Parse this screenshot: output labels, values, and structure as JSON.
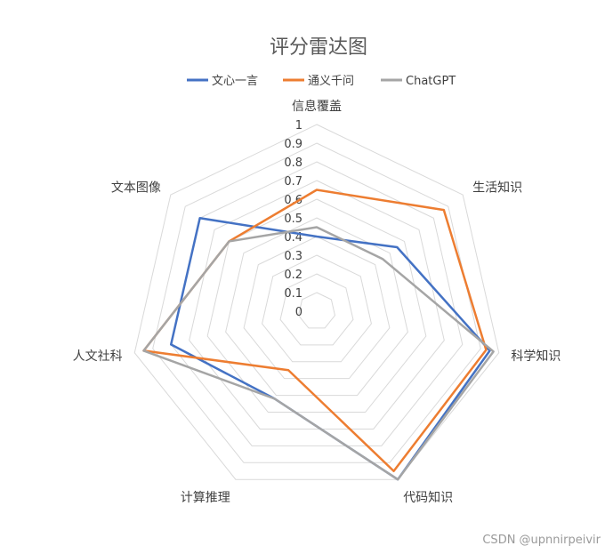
{
  "chart_data": {
    "type": "radar",
    "title": "评分雷达图",
    "axes": [
      "信息覆盖",
      "生活知识",
      "科学知识",
      "代码知识",
      "计算推理",
      "人文社科",
      "文本图像"
    ],
    "ticks": [
      "0",
      "0.1",
      "0.2",
      "0.3",
      "0.4",
      "0.5",
      "0.6",
      "0.7",
      "0.8",
      "0.9",
      "1"
    ],
    "rlim": [
      0,
      1
    ],
    "grid": true,
    "legend_position": "top",
    "series": [
      {
        "name": "文心一言",
        "color": "#4472C4",
        "values": [
          0.4,
          0.55,
          0.95,
          1.0,
          0.52,
          0.8,
          0.8
        ]
      },
      {
        "name": "通义千问",
        "color": "#ED7D31",
        "values": [
          0.65,
          0.87,
          0.93,
          0.95,
          0.35,
          0.95,
          0.6
        ]
      },
      {
        "name": "ChatGPT",
        "color": "#A5A5A5",
        "values": [
          0.45,
          0.45,
          0.97,
          1.0,
          0.52,
          0.95,
          0.6
        ]
      }
    ]
  },
  "watermark": "CSDN @upnnirpeivir"
}
